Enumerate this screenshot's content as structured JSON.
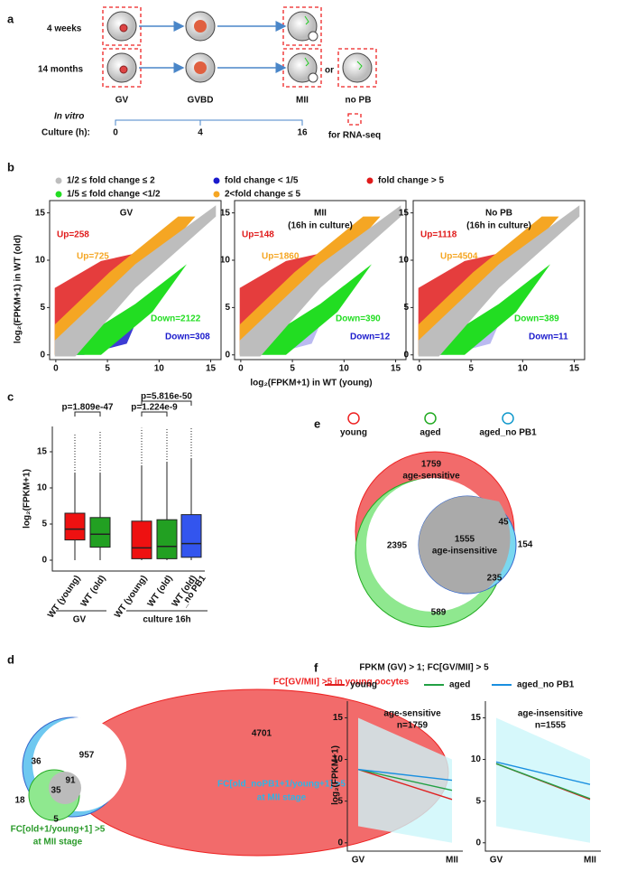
{
  "panel_a": {
    "label": "a",
    "rows": [
      "4 weeks",
      "14 months"
    ],
    "stages": [
      "GV",
      "GVBD",
      "MII",
      "no PB"
    ],
    "or": "or",
    "in_vitro": "In vitro",
    "culture": "Culture (h):",
    "times": [
      "0",
      "4",
      "16"
    ],
    "rnaseq": "for RNA-seq"
  },
  "panel_b": {
    "label": "b",
    "legend": [
      {
        "name": "1/2 ≤ fold change ≤ 2",
        "color": "#bdbdbd"
      },
      {
        "name": "fold change < 1/5",
        "color": "#1a1acc"
      },
      {
        "name": "fold change > 5",
        "color": "#e01b1b"
      },
      {
        "name": "1/5 ≤ fold change <1/2",
        "color": "#22dd22"
      },
      {
        "name": "2<fold change ≤ 5",
        "color": "#f5a623"
      }
    ],
    "plots": [
      {
        "title": [
          "GV"
        ],
        "up5": "Up=258",
        "up2": "Up=725",
        "down2": "Down=2122",
        "down5": "Down=308"
      },
      {
        "title": [
          "MII",
          "(16h in culture)"
        ],
        "up5": "Up=148",
        "up2": "Up=1860",
        "down2": "Down=390",
        "down5": "Down=12"
      },
      {
        "title": [
          "No PB",
          "(16h in culture)"
        ],
        "up5": "Up=1118",
        "up2": "Up=4504",
        "down2": "Down=389",
        "down5": "Down=11"
      }
    ],
    "xlim": [
      -0.6,
      16
    ],
    "ylim": [
      -0.5,
      16.3
    ],
    "ticks": [
      0,
      5,
      10,
      15
    ],
    "ylabel": "log₂(FPKM+1) in WT (old)",
    "xlabel": "log₂(FPKM+1) in WT (young)"
  },
  "panel_c": {
    "label": "c",
    "ylabel": "log₂(FPKM+1)",
    "ylim": [
      -1.5,
      18.5
    ],
    "yticks": [
      0,
      5,
      10,
      15
    ],
    "boxes": [
      {
        "name": [
          "WT (young)"
        ],
        "color": "#ee1111",
        "low": 0,
        "q1": 2.8,
        "median": 4.3,
        "q3": 6.5,
        "high": 12,
        "max": 17.5
      },
      {
        "name": [
          "WT (old)"
        ],
        "color": "#22a022",
        "low": 0,
        "q1": 1.8,
        "median": 3.6,
        "q3": 5.9,
        "high": 12,
        "max": 17.8
      },
      {
        "name": [
          "WT (young)"
        ],
        "color": "#ee1111",
        "low": 0,
        "q1": 0.2,
        "median": 1.7,
        "q3": 5.4,
        "high": 13,
        "max": 18.3
      },
      {
        "name": [
          "WT (old)"
        ],
        "color": "#22a022",
        "low": 0,
        "q1": 0.2,
        "median": 1.9,
        "q3": 5.6,
        "high": 13.5,
        "max": 18.3
      },
      {
        "name": [
          "WT (old)",
          "_no PB1"
        ],
        "color": "#3355ee",
        "low": 0,
        "q1": 0.4,
        "median": 2.3,
        "q3": 6.3,
        "high": 14,
        "max": 18.3
      }
    ],
    "pvalues": [
      "p=1.809e-47",
      "p=1.224e-9",
      "p=5.816e-50"
    ],
    "groups": [
      "GV",
      "culture 16h"
    ]
  },
  "panel_d": {
    "label": "d",
    "title": "FC[GV/MII] >5 in young oocytes",
    "numbers": [
      "4701",
      "957",
      "36",
      "91",
      "35",
      "18",
      "5"
    ],
    "blue_label": [
      "FC[old_noPB1+1/young+1] >5",
      "at MII stage"
    ],
    "green_label": [
      "FC[old+1/young+1] >5",
      "at MII stage"
    ]
  },
  "panel_e": {
    "label": "e",
    "legend": [
      "young",
      "aged",
      "aged_no PB1"
    ],
    "sensitive": "age-sensitive",
    "insensitive": "age-insensitive",
    "numbers": [
      "1759",
      "2395",
      "1555",
      "45",
      "154",
      "235",
      "589"
    ],
    "caption": "FPKM (GV) > 1; FC[GV/MII] > 5"
  },
  "panel_f": {
    "label": "f",
    "ylabel": "log₂(FPKM+1)",
    "ylim": [
      -1,
      17
    ],
    "yticks": [
      0,
      5,
      10,
      15
    ],
    "x": [
      "GV",
      "MII"
    ],
    "series": [
      {
        "name": "young",
        "color": "#e02020"
      },
      {
        "name": "aged",
        "color": "#22a044"
      },
      {
        "name": "aged_no PB1",
        "color": "#1a8fe0"
      }
    ],
    "plots": [
      {
        "title": [
          "age-sensitive",
          "n=1759"
        ],
        "values": [
          [
            8.8,
            5.2
          ],
          [
            8.8,
            6.3
          ],
          [
            8.8,
            7.5
          ]
        ]
      },
      {
        "title": [
          "age-insensitive",
          "n=1555"
        ],
        "values": [
          [
            9.5,
            5.2
          ],
          [
            9.5,
            5.3
          ],
          [
            9.7,
            7.0
          ]
        ]
      }
    ]
  }
}
